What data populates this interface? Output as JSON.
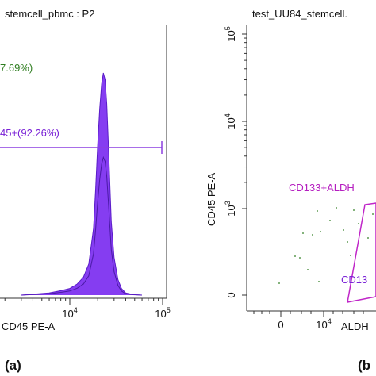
{
  "panel_a": {
    "title": "stemcell_pbmc : P2",
    "gate_neg_label": "7.69%)",
    "gate_pos_label": "45+(92.26%)",
    "xlabel": "CD45 PE-A",
    "x_ticks": [
      {
        "value": 10000,
        "base": "10",
        "exp": "4"
      },
      {
        "value": 100000,
        "base": "10",
        "exp": "5"
      }
    ],
    "panel_label": "(a)",
    "colors": {
      "fill": "#7b2cf0",
      "outline": "#4a1aa6",
      "gate": "#8c3fe0",
      "neg_label": "#2e7d1f"
    }
  },
  "panel_b": {
    "title": "test_UU84_stemcell.",
    "ylabel": "CD45 PE-A",
    "xlabel": "ALDH",
    "y_ticks": [
      {
        "value": 100000,
        "base": "10",
        "exp": "5"
      },
      {
        "value": 10000,
        "base": "10",
        "exp": "4"
      },
      {
        "value": 1000,
        "base": "10",
        "exp": "3"
      },
      {
        "value": 0,
        "base": "0",
        "exp": ""
      }
    ],
    "x_ticks": [
      {
        "value": 0,
        "base": "0",
        "exp": ""
      },
      {
        "value": 10000,
        "base": "10",
        "exp": "4"
      }
    ],
    "gate_label_1": "CD133+ALDH",
    "gate_label_2": "CD13",
    "panel_label": "(b",
    "colors": {
      "gate": "#c026c8",
      "dots": "#2e7d1f"
    }
  },
  "chart_data": [
    {
      "type": "area",
      "title": "stemcell_pbmc : P2",
      "xlabel": "CD45 PE-A",
      "ylabel": "",
      "x_scale": "log",
      "xlim": [
        300,
        100000
      ],
      "x": [
        3000,
        6000,
        8000,
        10000,
        12000,
        14000,
        16000,
        18000,
        19000,
        20000,
        21000,
        22000,
        23000,
        24000,
        25000,
        26000,
        27000,
        28000,
        30000,
        33000,
        36000,
        40000,
        48000,
        60000
      ],
      "series": [
        {
          "values": [
            0,
            1,
            2,
            3,
            5,
            8,
            14,
            30,
            48,
            68,
            84,
            95,
            100,
            97,
            86,
            68,
            50,
            33,
            17,
            7,
            3,
            1,
            0.3,
            0
          ]
        }
      ],
      "gates": [
        {
          "label": "45+(92.26%)",
          "range": [
            300,
            100000
          ]
        }
      ]
    },
    {
      "type": "scatter",
      "title": "test_UU84_stemcell.",
      "xlabel": "ALDH",
      "ylabel": "CD45 PE-A",
      "x_scale": "log",
      "y_scale": "log",
      "gates": [
        {
          "label": "CD133+ALDH"
        },
        {
          "label": "CD13"
        }
      ]
    }
  ]
}
